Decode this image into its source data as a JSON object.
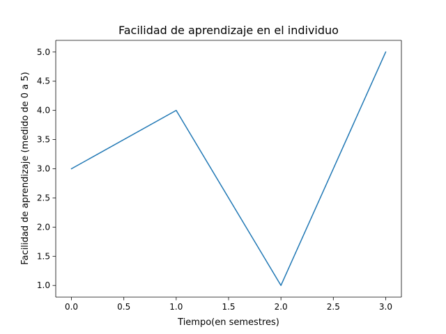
{
  "chart_data": {
    "type": "line",
    "title": "Facilidad de aprendizaje en el individuo",
    "xlabel": "Tiempo(en semestres)",
    "ylabel": "Facilidad de aprendizaje (medido de 0 a 5)",
    "x": [
      0,
      1,
      2,
      3
    ],
    "series": [
      {
        "values": [
          3,
          4,
          1,
          5
        ],
        "color": "#1f77b4"
      }
    ],
    "xlim": [
      -0.15,
      3.15
    ],
    "ylim": [
      0.8,
      5.2
    ],
    "xticks": [
      0.0,
      0.5,
      1.0,
      1.5,
      2.0,
      2.5,
      3.0
    ],
    "xtick_labels": [
      "0.0",
      "0.5",
      "1.0",
      "1.5",
      "2.0",
      "2.5",
      "3.0"
    ],
    "yticks": [
      1.0,
      1.5,
      2.0,
      2.5,
      3.0,
      3.5,
      4.0,
      4.5,
      5.0
    ],
    "ytick_labels": [
      "1.0",
      "1.5",
      "2.0",
      "2.5",
      "3.0",
      "3.5",
      "4.0",
      "4.5",
      "5.0"
    ],
    "grid": false,
    "legend": "none"
  }
}
